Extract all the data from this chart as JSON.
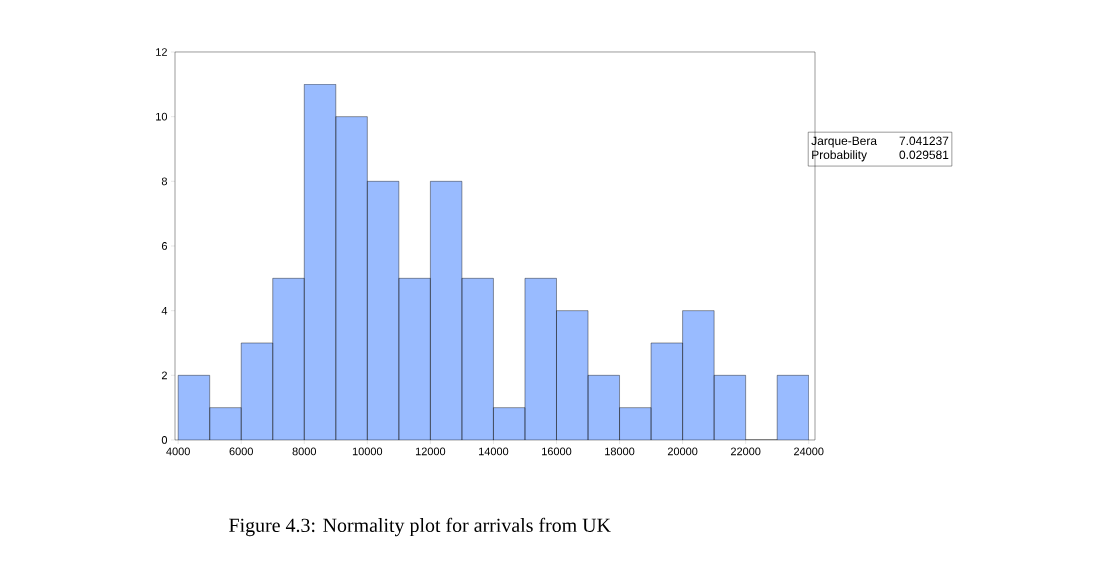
{
  "chart_data": {
    "type": "histogram",
    "bins": [
      4000,
      5000,
      6000,
      7000,
      8000,
      9000,
      10000,
      11000,
      12000,
      13000,
      14000,
      15000,
      16000,
      17000,
      18000,
      19000,
      20000,
      21000,
      22000,
      23000,
      24000
    ],
    "values": [
      2,
      1,
      3,
      5,
      11,
      10,
      8,
      5,
      8,
      5,
      1,
      5,
      4,
      2,
      1,
      3,
      4,
      2,
      0,
      2
    ],
    "color": "#99bbff",
    "xlim": [
      3900,
      24200
    ],
    "ylim": [
      0,
      12
    ],
    "xticks": [
      4000,
      6000,
      8000,
      10000,
      12000,
      14000,
      16000,
      18000,
      20000,
      22000,
      24000
    ],
    "yticks": [
      0,
      2,
      4,
      6,
      8,
      10,
      12
    ],
    "grid": false,
    "annotations": [
      "Jarque-Bera",
      "7.041237",
      "Probability",
      "0.029581",
      "Figure 4.3: Normality plot for arrivals from UK"
    ]
  }
}
